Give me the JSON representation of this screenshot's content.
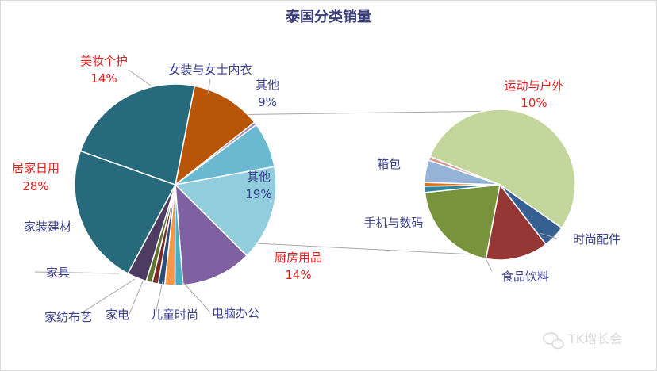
{
  "chart_data": [
    {
      "type": "pie",
      "title": "泰国分类销量",
      "slices": [
        {
          "name": "美妆个护",
          "value": 14,
          "pct_label": "14%",
          "color": "#b85507",
          "highlight": true
        },
        {
          "name": "女装与女士内衣",
          "value": 0.6,
          "pct_label": "",
          "color": "#9b86b8",
          "highlight": false
        },
        {
          "name": "其他",
          "value": 9,
          "pct_label": "9%",
          "color": "#6bb8d1",
          "highlight": false
        },
        {
          "name": "其他",
          "value": 19,
          "pct_label": "19%",
          "color": "#92cddd",
          "highlight": false
        },
        {
          "name": "厨房用品",
          "value": 14,
          "pct_label": "14%",
          "color": "#7f60a2",
          "highlight": true
        },
        {
          "name": "电脑办公",
          "value": 1.6,
          "pct_label": "",
          "color": "#4aacc6",
          "highlight": false
        },
        {
          "name": "儿童时尚",
          "value": 2,
          "pct_label": "",
          "color": "#f79646",
          "highlight": false
        },
        {
          "name": "",
          "value": 1.3,
          "pct_label": "",
          "color": "#2c4d75",
          "highlight": false
        },
        {
          "name": "家电",
          "value": 1.2,
          "pct_label": "",
          "color": "#772c2a",
          "highlight": false
        },
        {
          "name": "家纺布艺",
          "value": 1.2,
          "pct_label": "",
          "color": "#5f7530",
          "highlight": false
        },
        {
          "name": "家具",
          "value": 3.9,
          "pct_label": "",
          "color": "#4d3b62",
          "highlight": false
        },
        {
          "name": "家装建材",
          "value": 28,
          "pct_label": "",
          "color": "#276a7c",
          "highlight": false
        },
        {
          "name": "居家日用",
          "value": 28,
          "pct_label": "28%",
          "color": "#276a7c",
          "highlight": true
        }
      ]
    },
    {
      "type": "pie",
      "title": "",
      "slices": [
        {
          "name": "运动与户外",
          "value": 10,
          "pct_label": "10%",
          "color": "#c3d69b",
          "highlight": true
        },
        {
          "name": "时尚配件",
          "value": 0.9,
          "pct_label": "",
          "color": "#376092",
          "highlight": false
        },
        {
          "name": "食品饮料",
          "value": 2.5,
          "pct_label": "",
          "color": "#953735",
          "highlight": false
        },
        {
          "name": "手机与数码",
          "value": 3.8,
          "pct_label": "",
          "color": "#77933c",
          "highlight": false
        },
        {
          "name": "",
          "value": 0.25,
          "pct_label": "",
          "color": "#31859c",
          "highlight": false
        },
        {
          "name": "",
          "value": 0.15,
          "pct_label": "",
          "color": "#e46c0a",
          "highlight": false
        },
        {
          "name": "箱包",
          "value": 0.9,
          "pct_label": "",
          "color": "#95b3d7",
          "highlight": false
        },
        {
          "name": "",
          "value": 0.15,
          "pct_label": "",
          "color": "#d99694",
          "highlight": false
        }
      ]
    }
  ],
  "watermark": "TK增长会",
  "watermark_icon": "wechat-icon",
  "colors": {
    "title": "#3b3f7a",
    "label": "#3b3f8f",
    "highlight": "#e01e1e",
    "leader": "#a6a6a6"
  }
}
